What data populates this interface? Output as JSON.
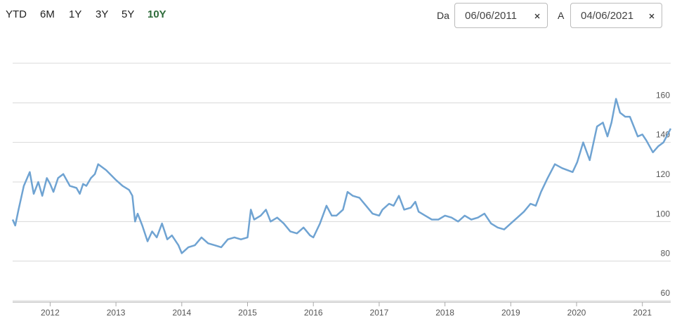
{
  "ranges": [
    "YTD",
    "6M",
    "1Y",
    "3Y",
    "5Y",
    "10Y"
  ],
  "date_from": {
    "label": "Da",
    "value": "06/06/2011"
  },
  "date_to": {
    "label": "A",
    "value": "04/06/2021"
  },
  "chart_data": {
    "type": "line",
    "color": "#6fa3d2",
    "xlim": [
      2011.43,
      2021.43
    ],
    "xticks": [
      2012,
      2013,
      2014,
      2015,
      2016,
      2017,
      2018,
      2019,
      2020,
      2021
    ],
    "ylim": [
      60,
      180
    ],
    "yticks": [
      60,
      80,
      100,
      120,
      140,
      160
    ],
    "grid": true,
    "x": [
      2011.43,
      2011.47,
      2011.52,
      2011.6,
      2011.69,
      2011.75,
      2011.82,
      2011.88,
      2011.95,
      2012.0,
      2012.05,
      2012.12,
      2012.2,
      2012.3,
      2012.4,
      2012.45,
      2012.5,
      2012.55,
      2012.62,
      2012.68,
      2012.73,
      2012.85,
      2013.0,
      2013.1,
      2013.2,
      2013.25,
      2013.29,
      2013.33,
      2013.4,
      2013.48,
      2013.55,
      2013.62,
      2013.7,
      2013.78,
      2013.85,
      2013.95,
      2014.0,
      2014.1,
      2014.2,
      2014.3,
      2014.4,
      2014.5,
      2014.6,
      2014.7,
      2014.8,
      2014.9,
      2015.0,
      2015.05,
      2015.1,
      2015.2,
      2015.28,
      2015.35,
      2015.45,
      2015.55,
      2015.65,
      2015.75,
      2015.85,
      2015.95,
      2016.0,
      2016.1,
      2016.2,
      2016.28,
      2016.35,
      2016.45,
      2016.52,
      2016.6,
      2016.7,
      2016.8,
      2016.9,
      2017.0,
      2017.05,
      2017.15,
      2017.22,
      2017.3,
      2017.38,
      2017.48,
      2017.55,
      2017.6,
      2017.7,
      2017.8,
      2017.9,
      2018.0,
      2018.1,
      2018.2,
      2018.3,
      2018.4,
      2018.5,
      2018.6,
      2018.7,
      2018.8,
      2018.9,
      2019.0,
      2019.1,
      2019.2,
      2019.3,
      2019.38,
      2019.46,
      2019.56,
      2019.67,
      2019.78,
      2019.94,
      2020.01,
      2020.1,
      2020.2,
      2020.31,
      2020.4,
      2020.47,
      2020.53,
      2020.6,
      2020.66,
      2020.74,
      2020.81,
      2020.87,
      2020.93,
      2021.0,
      2021.06,
      2021.16,
      2021.24,
      2021.32,
      2021.43
    ],
    "values": [
      101,
      98,
      106,
      118,
      125,
      114,
      120,
      113,
      122,
      119,
      115,
      122,
      124,
      118,
      117,
      114,
      119,
      118,
      122,
      124,
      129,
      126,
      121,
      118,
      116,
      113,
      100,
      104,
      98,
      90,
      95,
      92,
      99,
      91,
      93,
      88,
      84,
      87,
      88,
      92,
      89,
      88,
      87,
      91,
      92,
      91,
      92,
      106,
      101,
      103,
      106,
      100,
      102,
      99,
      95,
      94,
      97,
      93,
      92,
      99,
      108,
      103,
      103,
      106,
      115,
      113,
      112,
      108,
      104,
      103,
      106,
      109,
      108,
      113,
      106,
      107,
      110,
      105,
      103,
      101,
      101,
      103,
      102,
      100,
      103,
      101,
      102,
      104,
      99,
      97,
      96,
      99,
      102,
      105,
      109,
      108,
      115,
      122,
      129,
      127,
      125,
      130,
      140,
      131,
      148,
      150,
      143,
      150,
      162,
      155,
      153,
      153,
      148,
      143,
      144,
      141,
      135,
      138,
      140,
      147
    ]
  }
}
